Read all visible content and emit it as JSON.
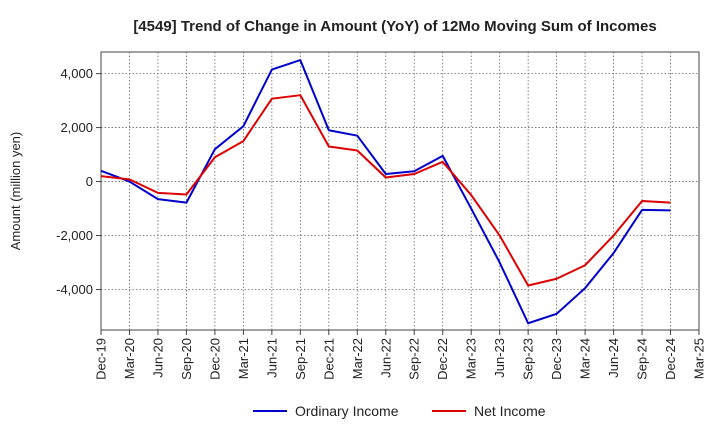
{
  "chart_data": {
    "type": "line",
    "title": "[4549]  Trend of Change in Amount (YoY) of 12Mo Moving Sum of Incomes",
    "xlabel": "",
    "ylabel": "Amount (million yen)",
    "ylim": [
      -5500,
      4800
    ],
    "yticks": [
      4000,
      2000,
      0,
      -2000,
      -4000
    ],
    "ytick_labels": [
      "4,000",
      "2,000",
      "0",
      "-2,000",
      "-4,000"
    ],
    "grid": true,
    "legend_position": "bottom",
    "categories": [
      "Dec-19",
      "Mar-20",
      "Jun-20",
      "Sep-20",
      "Dec-20",
      "Mar-21",
      "Jun-21",
      "Sep-21",
      "Dec-21",
      "Mar-22",
      "Jun-22",
      "Sep-22",
      "Dec-22",
      "Mar-23",
      "Jun-23",
      "Sep-23",
      "Dec-23",
      "Mar-24",
      "Jun-24",
      "Sep-24",
      "Dec-24",
      "Mar-25"
    ],
    "series": [
      {
        "name": "Ordinary Income",
        "color": "#0000cc",
        "values": [
          400,
          0,
          -650,
          -780,
          1200,
          2050,
          4150,
          4500,
          1900,
          1700,
          280,
          380,
          950,
          -1000,
          -3000,
          -5250,
          -4900,
          -3950,
          -2650,
          -1050,
          -1070,
          null
        ]
      },
      {
        "name": "Net Income",
        "color": "#dd0000",
        "values": [
          200,
          80,
          -420,
          -480,
          900,
          1500,
          3070,
          3200,
          1300,
          1150,
          150,
          280,
          730,
          -500,
          -2000,
          -3850,
          -3600,
          -3100,
          -2000,
          -720,
          -780,
          null
        ]
      }
    ]
  }
}
